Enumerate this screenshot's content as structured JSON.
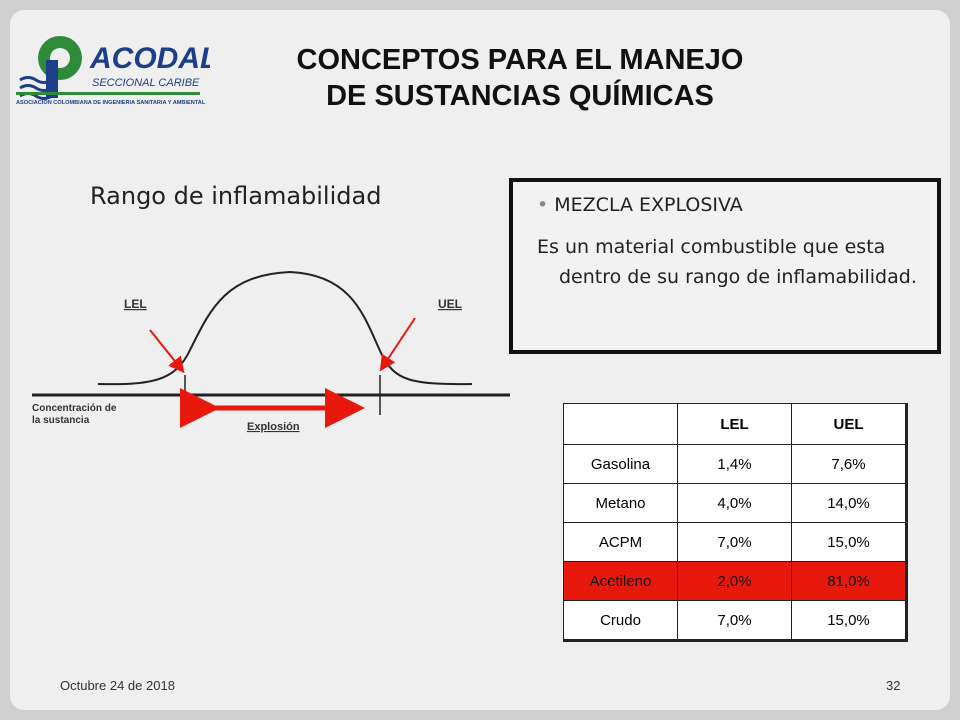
{
  "header": {
    "logo": {
      "name": "ACODAL",
      "subtitle": "SECCIONAL CARIBE",
      "tagline": "ASOCIACION COLOMBIANA DE INGENIERIA SANITARIA Y AMBIENTAL"
    },
    "title": [
      "CONCEPTOS PARA EL MANEJO",
      "DE SUSTANCIAS QUÍMICAS"
    ]
  },
  "left": {
    "heading": "Rango de inflamabilidad",
    "diagram": {
      "lel": "LEL",
      "uel": "UEL",
      "axis_label": [
        "Concentración de",
        "la sustancia"
      ],
      "range_label": "Explosión"
    }
  },
  "box": {
    "bullet": "MEZCLA EXPLOSIVA",
    "text": "Es un material combustible que esta dentro de su rango de inflamabilidad."
  },
  "table": {
    "header": [
      "",
      "LEL",
      "UEL"
    ],
    "rows": [
      [
        "Gasolina",
        "1,4%",
        "7,6%"
      ],
      [
        "Metano",
        "4,0%",
        "14,0%"
      ],
      [
        "ACPM",
        "7,0%",
        "15,0%"
      ],
      [
        "Acetileno",
        "2,0%",
        "81,0%"
      ],
      [
        "Crudo",
        "7,0%",
        "15,0%"
      ]
    ],
    "highlight_row": 3
  },
  "footer": {
    "date": "Octubre 24 de 2018",
    "page": "32"
  }
}
